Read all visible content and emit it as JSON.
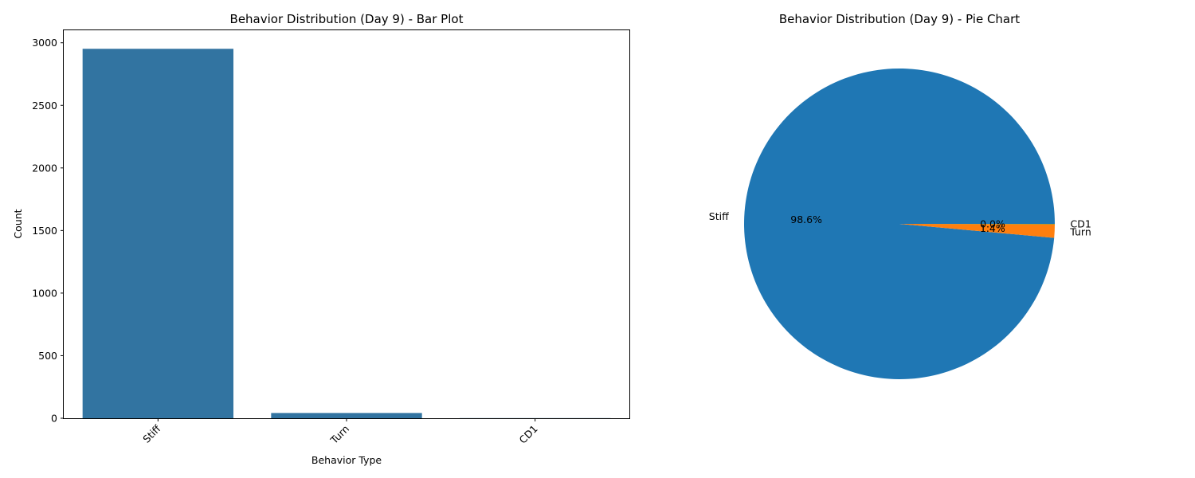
{
  "chart_data": [
    {
      "type": "bar",
      "title": "Behavior Distribution (Day 9) - Bar Plot",
      "xlabel": "Behavior Type",
      "ylabel": "Count",
      "categories": [
        "Stiff",
        "Turn",
        "CD1"
      ],
      "values": [
        2952,
        42,
        1
      ],
      "ylim": [
        0,
        3100
      ],
      "yticks": [
        0,
        500,
        1000,
        1500,
        2000,
        2500,
        3000
      ],
      "xtick_rotation_deg": 45,
      "grid": false,
      "color": "#3274a1"
    },
    {
      "type": "pie",
      "title": "Behavior Distribution (Day 9) - Pie Chart",
      "labels": [
        "Stiff",
        "Turn",
        "CD1"
      ],
      "values": [
        2952,
        42,
        1
      ],
      "percent_labels": [
        "98.6%",
        "1.4%",
        "0.0%"
      ],
      "colors": [
        "#1f77b4",
        "#ff7f0e",
        "#2ca02c"
      ],
      "start_angle_deg": 0,
      "direction": "counterclockwise"
    }
  ]
}
